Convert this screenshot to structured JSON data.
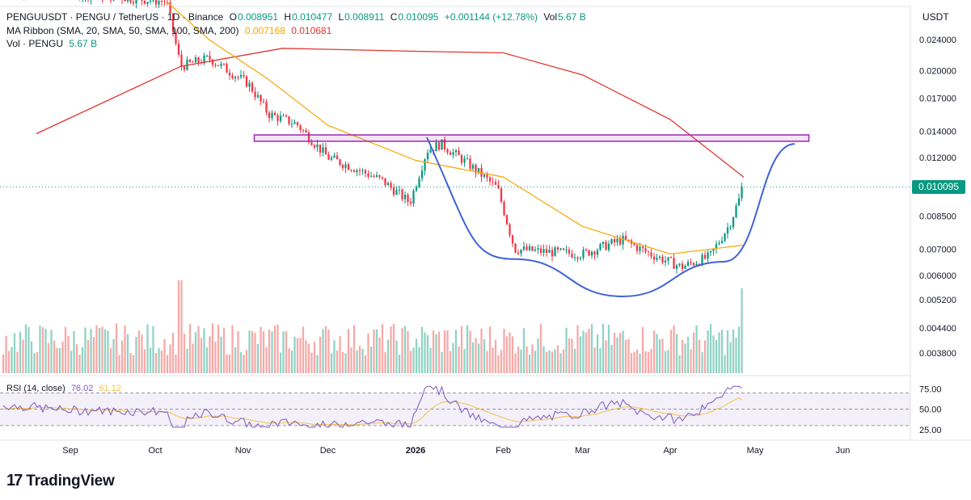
{
  "header": {
    "symbol": "PENGUUSDT · PENGU / TetherUS · 1D · Binance",
    "open_key": "O",
    "open": "0.008951",
    "high_key": "H",
    "high": "0.010477",
    "low_key": "L",
    "low": "0.008911",
    "close_key": "C",
    "close": "0.010095",
    "change": "+0.001144 (+12.78%)",
    "vol_key": "Vol",
    "vol": "5.67 B"
  },
  "ma_legend": {
    "label": "MA Ribbon (SMA, 20, SMA, 50, SMA, 100, SMA, 200)",
    "value1": "0.007168",
    "value2": "0.010681"
  },
  "vol_legend": {
    "label": "Vol · PENGU",
    "value": "5.67 B"
  },
  "rsi_legend": {
    "label": "RSI (14, close)",
    "value1": "76.02",
    "value2": "61.12"
  },
  "price_axis": {
    "unit": "USDT",
    "current": "0.010095"
  },
  "branding": {
    "name": "TradingView",
    "mark": "17"
  },
  "colors": {
    "up": "#089981",
    "down": "#f23645",
    "up_volume": "#8fd3c4",
    "down_volume": "#f7a9a7",
    "ma_fast": "#f7a600",
    "ma_slow": "#e0342e",
    "cup_line": "#3f63d6",
    "resistance": "#9c27b0",
    "rsi": "#7e57c2",
    "rsi_ma": "#f7c145"
  },
  "chart_data": {
    "type": "candlestick",
    "title": "PENGUUSDT · PENGU / TetherUS · 1D · Binance",
    "y_scale": "log",
    "y_ticks": [
      "0.024000",
      "0.020000",
      "0.017000",
      "0.014000",
      "0.012000",
      "0.010095",
      "0.008500",
      "0.007000",
      "0.006000",
      "0.005200",
      "0.004400",
      "0.003800"
    ],
    "x_ticks": [
      "Sep",
      "Oct",
      "Nov",
      "Dec",
      "2026",
      "Feb",
      "Mar",
      "Apr",
      "May",
      "Jun"
    ],
    "last_price": 0.010095,
    "price_path": [
      {
        "date": "2025-08-20",
        "close": 0.032
      },
      {
        "date": "2025-09-15",
        "close": 0.031
      },
      {
        "date": "2025-10-05",
        "close": 0.03
      },
      {
        "date": "2025-10-10",
        "close": 0.0205
      },
      {
        "date": "2025-10-20",
        "close": 0.0215
      },
      {
        "date": "2025-11-03",
        "close": 0.0185
      },
      {
        "date": "2025-11-10",
        "close": 0.0155
      },
      {
        "date": "2025-11-20",
        "close": 0.0146
      },
      {
        "date": "2025-12-01",
        "close": 0.012
      },
      {
        "date": "2025-12-10",
        "close": 0.0113
      },
      {
        "date": "2025-12-20",
        "close": 0.0105
      },
      {
        "date": "2025-12-30",
        "close": 0.0092
      },
      {
        "date": "2026-01-05",
        "close": 0.0125
      },
      {
        "date": "2026-01-10",
        "close": 0.013
      },
      {
        "date": "2026-01-20",
        "close": 0.0115
      },
      {
        "date": "2026-01-30",
        "close": 0.01
      },
      {
        "date": "2026-02-05",
        "close": 0.007
      },
      {
        "date": "2026-02-15",
        "close": 0.0069
      },
      {
        "date": "2026-03-01",
        "close": 0.0068
      },
      {
        "date": "2026-03-15",
        "close": 0.0074
      },
      {
        "date": "2026-03-25",
        "close": 0.0068
      },
      {
        "date": "2026-04-05",
        "close": 0.0063
      },
      {
        "date": "2026-04-15",
        "close": 0.0067
      },
      {
        "date": "2026-04-22",
        "close": 0.0081
      },
      {
        "date": "2026-04-27",
        "close": 0.010095
      }
    ],
    "ma_fast_path": [
      {
        "date": "2025-10-05",
        "value": 0.03
      },
      {
        "date": "2025-10-20",
        "value": 0.024
      },
      {
        "date": "2025-11-10",
        "value": 0.019
      },
      {
        "date": "2025-12-01",
        "value": 0.0145
      },
      {
        "date": "2026-01-01",
        "value": 0.0118
      },
      {
        "date": "2026-02-01",
        "value": 0.0107
      },
      {
        "date": "2026-03-01",
        "value": 0.008
      },
      {
        "date": "2026-04-01",
        "value": 0.0068
      },
      {
        "date": "2026-04-27",
        "value": 0.007168
      }
    ],
    "ma_slow_path": [
      {
        "date": "2025-08-20",
        "value": 0.0138
      },
      {
        "date": "2025-10-10",
        "value": 0.0205
      },
      {
        "date": "2025-11-15",
        "value": 0.0228
      },
      {
        "date": "2026-01-01",
        "value": 0.0224
      },
      {
        "date": "2026-02-01",
        "value": 0.0222
      },
      {
        "date": "2026-03-01",
        "value": 0.0195
      },
      {
        "date": "2026-04-01",
        "value": 0.015
      },
      {
        "date": "2026-04-27",
        "value": 0.010681
      }
    ],
    "resistance_zone": {
      "low": 0.0132,
      "high": 0.0137,
      "from": "2025-11-05",
      "to": "2026-05-20"
    },
    "cup_curve": [
      {
        "date": "2026-01-05",
        "value": 0.0135
      },
      {
        "date": "2026-02-05",
        "value": 0.0066
      },
      {
        "date": "2026-03-15",
        "value": 0.0053
      },
      {
        "date": "2026-04-20",
        "value": 0.0065
      },
      {
        "date": "2026-05-15",
        "value": 0.013
      }
    ],
    "rsi": {
      "period": 14,
      "last": 76.02,
      "ma_last": 61.12,
      "ticks": [
        "75.00",
        "50.00",
        "25.00"
      ],
      "band": [
        30,
        70
      ]
    }
  }
}
